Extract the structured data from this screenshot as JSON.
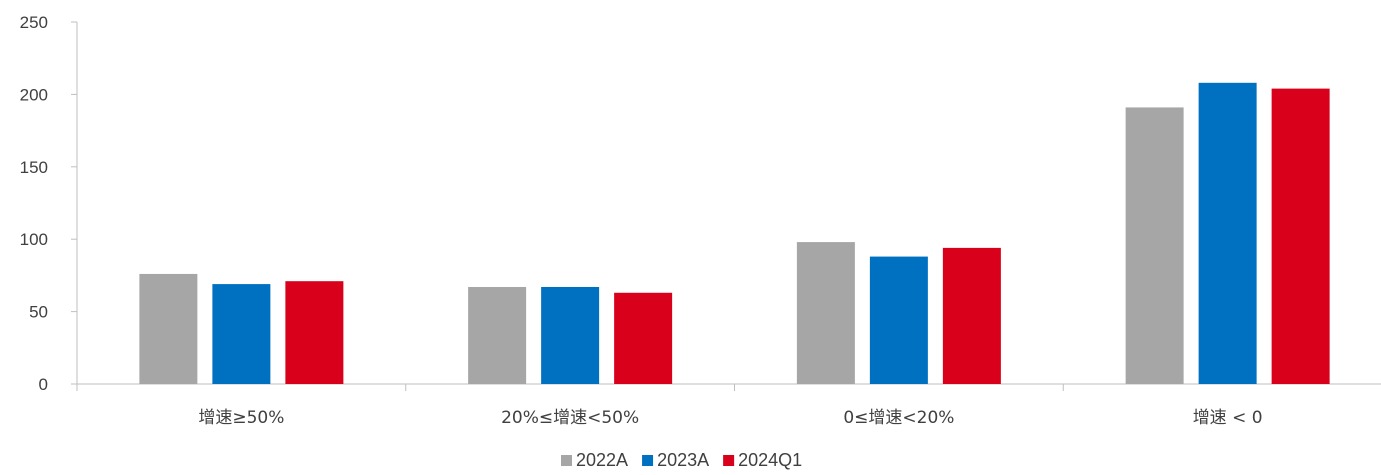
{
  "chart_data": {
    "type": "bar",
    "categories": [
      "增速≥50%",
      "20%≤增速<50%",
      "0≤增速<20%",
      "增速 < 0"
    ],
    "series": [
      {
        "name": "2022A",
        "color": "#a6a6a6",
        "values": [
          76,
          67,
          98,
          191
        ]
      },
      {
        "name": "2023A",
        "color": "#0070c0",
        "values": [
          69,
          67,
          88,
          208
        ]
      },
      {
        "name": "2024Q1",
        "color": "#d9001b",
        "values": [
          71,
          63,
          94,
          204
        ]
      }
    ],
    "yticks": [
      "0",
      "50",
      "100",
      "150",
      "200",
      "250"
    ],
    "ylim": [
      0,
      250
    ],
    "grid": false,
    "legend": "bottom",
    "title": "",
    "xlabel": "",
    "ylabel": ""
  }
}
